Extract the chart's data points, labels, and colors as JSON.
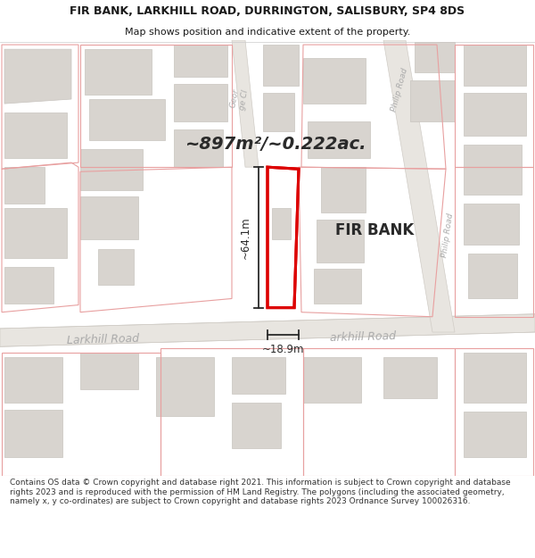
{
  "title_line1": "FIR BANK, LARKHILL ROAD, DURRINGTON, SALISBURY, SP4 8DS",
  "title_line2": "Map shows position and indicative extent of the property.",
  "area_label": "~897m²/~0.222ac.",
  "property_name": "FIR BANK",
  "dim_vertical": "~64.1m",
  "dim_horizontal": "~18.9m",
  "road_label_larkhill_left": "Larkhill Road",
  "road_label_larkhill_right": "arkhill Road",
  "road_label_george": "Geor\nge Cl",
  "road_label_philip_top": "Philip Road",
  "road_label_philip_mid": "Philip Road",
  "footer_text": "Contains OS data © Crown copyright and database right 2021. This information is subject to Crown copyright and database rights 2023 and is reproduced with the permission of HM Land Registry. The polygons (including the associated geometry, namely x, y co-ordinates) are subject to Crown copyright and database rights 2023 Ordnance Survey 100026316.",
  "bg_color": "#ffffff",
  "map_bg": "#ffffff",
  "building_fill": "#d8d4cf",
  "building_edge": "#c8c4bf",
  "road_fill": "#e8e5e0",
  "road_edge": "#d0ccc6",
  "plot_line_color": "#e8a0a0",
  "highlight_edge": "#dd0000",
  "dim_line_color": "#2a2a2a",
  "text_color": "#1a1a1a",
  "road_text_color": "#aaaaaa",
  "footer_color": "#333333",
  "title_fontsize": 9.0,
  "subtitle_fontsize": 8.0,
  "footer_fontsize": 6.5
}
